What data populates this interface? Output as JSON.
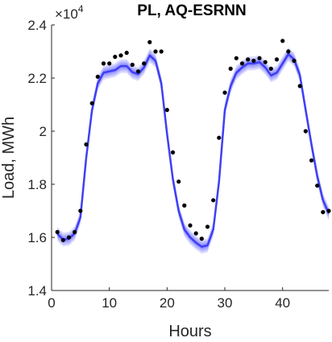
{
  "chart_data": {
    "type": "line",
    "title": "PL, AQ-ESRNN",
    "xlabel": "Hours",
    "ylabel": "Load, MWh",
    "exponent_label": "×10",
    "exponent_power": "4",
    "xlim": [
      0,
      48
    ],
    "ylim": [
      1.4,
      2.4
    ],
    "x_ticks": [
      0,
      10,
      20,
      30,
      40
    ],
    "y_ticks": [
      1.4,
      1.6,
      1.8,
      2.0,
      2.2,
      2.4
    ],
    "y_tick_labels": [
      "1.4",
      "1.6",
      "1.8",
      "2",
      "2.2",
      "2.4"
    ],
    "grid": false,
    "colors": {
      "forecast": "#3f3ff5",
      "band": "#4d4dff",
      "actual": "#000000",
      "axis": "#262626"
    },
    "series": [
      {
        "role": "forecast",
        "x": [
          1,
          2,
          3,
          4,
          5,
          6,
          7,
          8,
          9,
          10,
          11,
          12,
          13,
          14,
          15,
          16,
          17,
          18,
          19,
          20,
          21,
          22,
          23,
          24,
          25,
          26,
          27,
          28,
          29,
          30,
          31,
          32,
          33,
          34,
          35,
          36,
          37,
          38,
          39,
          40,
          41,
          42,
          43,
          44,
          45,
          46,
          47,
          48
        ],
        "values": [
          1.613,
          1.592,
          1.595,
          1.615,
          1.675,
          1.9,
          2.08,
          2.18,
          2.22,
          2.225,
          2.23,
          2.245,
          2.245,
          2.222,
          2.215,
          2.24,
          2.285,
          2.265,
          2.18,
          1.99,
          1.82,
          1.7,
          1.63,
          1.6,
          1.58,
          1.565,
          1.57,
          1.63,
          1.81,
          2.08,
          2.17,
          2.22,
          2.24,
          2.255,
          2.255,
          2.26,
          2.24,
          2.21,
          2.22,
          2.255,
          2.29,
          2.27,
          2.21,
          2.08,
          1.95,
          1.83,
          1.74,
          1.69
        ]
      },
      {
        "role": "actual",
        "x": [
          1,
          2,
          3,
          4,
          5,
          6,
          7,
          8,
          9,
          10,
          11,
          12,
          13,
          14,
          15,
          16,
          17,
          18,
          19,
          20,
          21,
          22,
          23,
          24,
          25,
          26,
          27,
          28,
          29,
          30,
          31,
          32,
          33,
          34,
          35,
          36,
          37,
          38,
          39,
          40,
          41,
          42,
          43,
          44,
          45,
          46,
          47,
          48
        ],
        "values": [
          1.62,
          1.59,
          1.6,
          1.62,
          1.7,
          1.95,
          2.105,
          2.205,
          2.255,
          2.255,
          2.28,
          2.285,
          2.295,
          2.25,
          2.225,
          2.255,
          2.335,
          2.3,
          2.3,
          2.08,
          1.92,
          1.81,
          1.72,
          1.645,
          1.615,
          1.595,
          1.64,
          1.74,
          1.975,
          2.145,
          2.235,
          2.275,
          2.255,
          2.27,
          2.265,
          2.275,
          2.26,
          2.235,
          2.27,
          2.34,
          2.3,
          2.265,
          2.17,
          2.0,
          1.89,
          1.795,
          1.695,
          1.7
        ]
      }
    ],
    "band_widths": [
      0.004,
      0.008,
      0.013,
      0.019,
      0.026
    ]
  }
}
